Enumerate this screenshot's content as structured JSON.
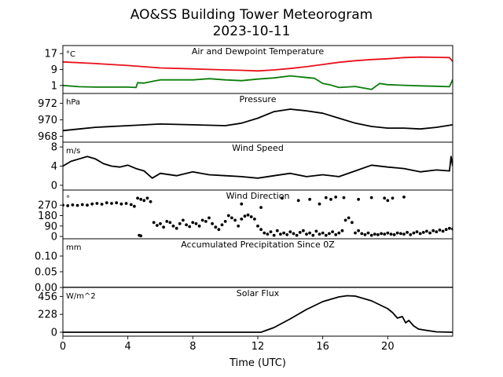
{
  "chart_data": {
    "type": "line",
    "title": "AO&SS Building Tower Meteorogram",
    "subtitle": "2023-10-11",
    "xlabel": "Time (UTC)",
    "xlim": [
      0,
      24
    ],
    "xticks": [
      "0",
      "4",
      "8",
      "12",
      "16",
      "20"
    ],
    "panels": [
      {
        "title": "Air and Dewpoint Temperature",
        "unit": "°C",
        "ylim": [
          -3,
          21
        ],
        "yticks": [
          "1",
          "9",
          "17"
        ],
        "colors": {
          "air": "#e8101a",
          "dewpoint": "#0a7d0a"
        },
        "series": [
          {
            "key": "air",
            "x": [
              0,
              2,
              4,
              6,
              8,
              10,
              11,
              12,
              13,
              14,
              15,
              16,
              17,
              18,
              19,
              20,
              21,
              22,
              23,
              23.8,
              24
            ],
            "values": [
              12.8,
              12.0,
              11.0,
              9.8,
              9.3,
              8.8,
              8.6,
              8.3,
              8.8,
              9.5,
              10.4,
              11.5,
              12.6,
              13.4,
              14.0,
              14.4,
              15.0,
              15.2,
              15.1,
              15.0,
              13.0
            ]
          },
          {
            "key": "dewpoint",
            "x": [
              0,
              1,
              2,
              3,
              4,
              4.5,
              4.6,
              5,
              5.6,
              6,
              8,
              9,
              10,
              11,
              12,
              13,
              14,
              15,
              15.5,
              16,
              16.5,
              17,
              18,
              19,
              19.5,
              20,
              21,
              22,
              23,
              23.8,
              24
            ],
            "values": [
              1.0,
              0.4,
              0.2,
              0.2,
              0.2,
              0.0,
              2.4,
              2.2,
              3.2,
              3.8,
              3.8,
              4.4,
              3.8,
              3.4,
              4.2,
              4.8,
              5.8,
              5.0,
              4.6,
              2.0,
              1.2,
              0.0,
              0.5,
              -1.0,
              2.0,
              1.4,
              1.1,
              0.8,
              0.6,
              0.4,
              4.0
            ]
          }
        ]
      },
      {
        "title": "Pressure",
        "unit": "hPa",
        "ylim": [
          967.3,
          973.2
        ],
        "yticks": [
          "968",
          "970",
          "972"
        ],
        "series": [
          {
            "key": "pressure",
            "x": [
              0,
              1,
              2,
              4,
              6,
              8,
              10,
              11,
              12,
              13,
              14,
              15,
              16,
              17,
              18,
              19,
              20,
              21,
              22,
              23,
              24
            ],
            "values": [
              968.7,
              968.9,
              969.1,
              969.3,
              969.5,
              969.4,
              969.3,
              969.6,
              970.2,
              971.0,
              971.3,
              971.1,
              970.8,
              970.2,
              969.6,
              969.2,
              969.0,
              969.0,
              968.9,
              969.1,
              969.4
            ]
          }
        ]
      },
      {
        "title": "Wind Speed",
        "unit": "m/s",
        "ylim": [
          -1,
          9
        ],
        "yticks": [
          "0",
          "4",
          "8"
        ],
        "series": [
          {
            "key": "wind_speed",
            "x": [
              0,
              0.5,
              1,
              1.5,
              2,
              2.5,
              3,
              3.5,
              4,
              4.5,
              5,
              5.5,
              6,
              7,
              8,
              9,
              10,
              11,
              12,
              13,
              14,
              15,
              16,
              17,
              18,
              19,
              20,
              21,
              22,
              23,
              23.8,
              23.9,
              24
            ],
            "values": [
              4.0,
              5.0,
              5.5,
              6.0,
              5.5,
              4.5,
              4.0,
              3.8,
              4.2,
              3.5,
              3.0,
              1.5,
              2.5,
              2.0,
              2.8,
              2.2,
              2.0,
              1.8,
              1.5,
              2.0,
              2.5,
              1.8,
              2.2,
              1.8,
              3.0,
              4.2,
              3.8,
              3.5,
              2.8,
              3.2,
              3.0,
              6.0,
              4.0
            ]
          }
        ]
      },
      {
        "title": "Wind Direction",
        "unit": "°",
        "ylim": [
          -20,
          400
        ],
        "yticks": [
          "0",
          "90",
          "180",
          "270"
        ],
        "points": [
          [
            0.0,
            270
          ],
          [
            0.3,
            265
          ],
          [
            0.6,
            272
          ],
          [
            0.9,
            268
          ],
          [
            1.2,
            275
          ],
          [
            1.5,
            270
          ],
          [
            1.8,
            280
          ],
          [
            2.1,
            285
          ],
          [
            2.4,
            278
          ],
          [
            2.7,
            290
          ],
          [
            3.0,
            285
          ],
          [
            3.3,
            290
          ],
          [
            3.6,
            280
          ],
          [
            3.9,
            285
          ],
          [
            4.2,
            275
          ],
          [
            4.4,
            260
          ],
          [
            4.6,
            330
          ],
          [
            4.8,
            320
          ],
          [
            5.0,
            310
          ],
          [
            5.2,
            330
          ],
          [
            5.4,
            300
          ],
          [
            5.6,
            120
          ],
          [
            5.8,
            95
          ],
          [
            6.0,
            110
          ],
          [
            6.2,
            80
          ],
          [
            6.4,
            130
          ],
          [
            6.6,
            120
          ],
          [
            6.8,
            90
          ],
          [
            7.0,
            70
          ],
          [
            7.2,
            110
          ],
          [
            7.4,
            140
          ],
          [
            7.6,
            100
          ],
          [
            7.8,
            85
          ],
          [
            8.0,
            120
          ],
          [
            8.2,
            110
          ],
          [
            8.4,
            90
          ],
          [
            8.6,
            140
          ],
          [
            8.8,
            130
          ],
          [
            9.0,
            160
          ],
          [
            9.2,
            110
          ],
          [
            9.4,
            80
          ],
          [
            9.6,
            60
          ],
          [
            9.8,
            100
          ],
          [
            10.0,
            130
          ],
          [
            10.2,
            180
          ],
          [
            10.4,
            160
          ],
          [
            10.6,
            140
          ],
          [
            10.8,
            90
          ],
          [
            11.0,
            150
          ],
          [
            11.2,
            175
          ],
          [
            11.4,
            185
          ],
          [
            11.6,
            170
          ],
          [
            11.8,
            150
          ],
          [
            12.0,
            90
          ],
          [
            12.2,
            60
          ],
          [
            12.4,
            30
          ],
          [
            12.6,
            20
          ],
          [
            12.8,
            40
          ],
          [
            13.0,
            10
          ],
          [
            13.2,
            50
          ],
          [
            13.4,
            20
          ],
          [
            13.6,
            30
          ],
          [
            13.8,
            15
          ],
          [
            14.0,
            40
          ],
          [
            14.2,
            25
          ],
          [
            14.4,
            10
          ],
          [
            14.6,
            35
          ],
          [
            14.8,
            50
          ],
          [
            15.0,
            20
          ],
          [
            15.2,
            30
          ],
          [
            15.4,
            10
          ],
          [
            15.6,
            45
          ],
          [
            15.8,
            20
          ],
          [
            16.0,
            30
          ],
          [
            16.2,
            10
          ],
          [
            16.4,
            25
          ],
          [
            16.6,
            40
          ],
          [
            16.8,
            15
          ],
          [
            17.0,
            30
          ],
          [
            17.2,
            50
          ],
          [
            17.4,
            140
          ],
          [
            17.6,
            160
          ],
          [
            17.8,
            120
          ],
          [
            18.0,
            30
          ],
          [
            18.2,
            50
          ],
          [
            18.4,
            25
          ],
          [
            18.6,
            15
          ],
          [
            18.8,
            30
          ],
          [
            19.0,
            10
          ],
          [
            19.2,
            20
          ],
          [
            19.4,
            15
          ],
          [
            19.6,
            25
          ],
          [
            19.8,
            20
          ],
          [
            20.0,
            30
          ],
          [
            20.2,
            20
          ],
          [
            20.4,
            15
          ],
          [
            20.6,
            30
          ],
          [
            20.8,
            25
          ],
          [
            21.0,
            20
          ],
          [
            21.2,
            35
          ],
          [
            21.4,
            15
          ],
          [
            21.6,
            30
          ],
          [
            21.8,
            40
          ],
          [
            22.0,
            25
          ],
          [
            22.2,
            35
          ],
          [
            22.4,
            45
          ],
          [
            22.6,
            30
          ],
          [
            22.8,
            50
          ],
          [
            23.0,
            40
          ],
          [
            23.2,
            55
          ],
          [
            23.4,
            45
          ],
          [
            23.6,
            60
          ],
          [
            23.8,
            70
          ],
          [
            24.0,
            65
          ],
          [
            4.7,
            10
          ],
          [
            4.8,
            5
          ],
          [
            11.0,
            280
          ],
          [
            12.2,
            250
          ],
          [
            13.5,
            330
          ],
          [
            14.5,
            310
          ],
          [
            15.2,
            320
          ],
          [
            15.8,
            280
          ],
          [
            16.2,
            335
          ],
          [
            16.5,
            320
          ],
          [
            16.8,
            340
          ],
          [
            17.3,
            335
          ],
          [
            18.2,
            320
          ],
          [
            19.0,
            335
          ],
          [
            19.8,
            330
          ],
          [
            20.0,
            310
          ],
          [
            20.3,
            330
          ],
          [
            21.0,
            340
          ]
        ]
      },
      {
        "title": "Accumulated Precipitation Since 0Z",
        "unit": "mm",
        "ylim": [
          0,
          0.155
        ],
        "yticks": [
          "0.00",
          "0.05",
          "0.10"
        ],
        "series": [
          {
            "key": "precip",
            "x": [
              0,
              24
            ],
            "values": [
              0,
              0
            ]
          }
        ]
      },
      {
        "title": "Solar Flux",
        "unit": "W/m^2",
        "ylim": [
          -50,
          570
        ],
        "yticks": [
          "0",
          "228",
          "456"
        ],
        "series": [
          {
            "key": "solar",
            "x": [
              0,
              12.2,
              13,
              14,
              15,
              16,
              17,
              17.5,
              18,
              19,
              19.5,
              20,
              20.3,
              20.6,
              20.9,
              21.1,
              21.3,
              21.6,
              21.9,
              22.5,
              23,
              24
            ],
            "values": [
              0,
              0,
              60,
              170,
              290,
              390,
              450,
              465,
              460,
              400,
              350,
              300,
              250,
              180,
              200,
              120,
              150,
              80,
              40,
              20,
              5,
              0
            ]
          }
        ]
      }
    ]
  }
}
